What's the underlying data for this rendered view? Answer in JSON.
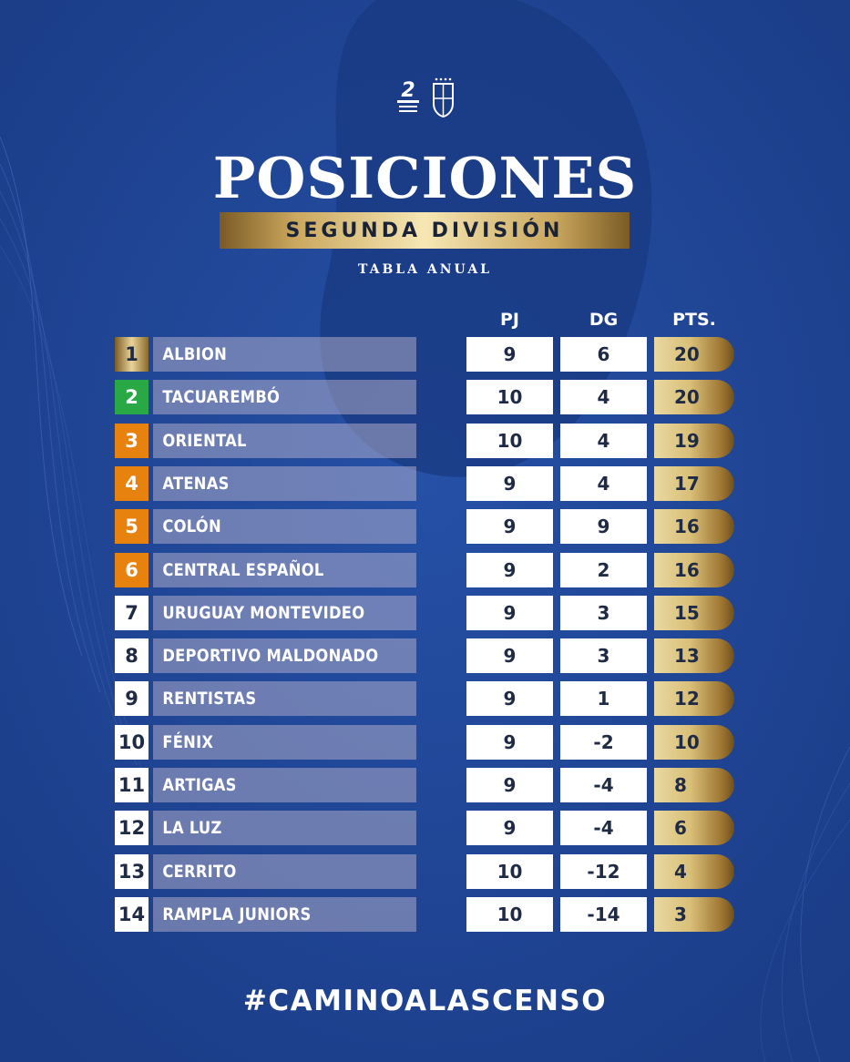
{
  "header": {
    "title": "POSICIONES",
    "subtitle": "SEGUNDA DIVISIÓN",
    "tabla": "TABLA ANUAL",
    "logo_text": "2"
  },
  "columns": {
    "pj": "PJ",
    "dg": "DG",
    "pts": "PTS."
  },
  "colors": {
    "background": "#1e4291",
    "gold": "#d9bf78",
    "green": "#2aa845",
    "orange": "#e8820f",
    "white": "#ffffff",
    "navy_text": "#1f2a44"
  },
  "rows": [
    {
      "pos": "1",
      "team": "ALBION",
      "pj": "9",
      "dg": "6",
      "pts": "20",
      "badge": "gold"
    },
    {
      "pos": "2",
      "team": "TACUAREMBÓ",
      "pj": "10",
      "dg": "4",
      "pts": "20",
      "badge": "green"
    },
    {
      "pos": "3",
      "team": "ORIENTAL",
      "pj": "10",
      "dg": "4",
      "pts": "19",
      "badge": "orange"
    },
    {
      "pos": "4",
      "team": "ATENAS",
      "pj": "9",
      "dg": "4",
      "pts": "17",
      "badge": "orange"
    },
    {
      "pos": "5",
      "team": "COLÓN",
      "pj": "9",
      "dg": "9",
      "pts": "16",
      "badge": "orange"
    },
    {
      "pos": "6",
      "team": "CENTRAL ESPAÑOL",
      "pj": "9",
      "dg": "2",
      "pts": "16",
      "badge": "orange"
    },
    {
      "pos": "7",
      "team": "URUGUAY MONTEVIDEO",
      "pj": "9",
      "dg": "3",
      "pts": "15",
      "badge": "white"
    },
    {
      "pos": "8",
      "team": "DEPORTIVO MALDONADO",
      "pj": "9",
      "dg": "3",
      "pts": "13",
      "badge": "white"
    },
    {
      "pos": "9",
      "team": "RENTISTAS",
      "pj": "9",
      "dg": "1",
      "pts": "12",
      "badge": "white"
    },
    {
      "pos": "10",
      "team": "FÉNIX",
      "pj": "9",
      "dg": "-2",
      "pts": "10",
      "badge": "white"
    },
    {
      "pos": "11",
      "team": "ARTIGAS",
      "pj": "9",
      "dg": "-4",
      "pts": "8",
      "badge": "white"
    },
    {
      "pos": "12",
      "team": "LA LUZ",
      "pj": "9",
      "dg": "-4",
      "pts": "6",
      "badge": "white"
    },
    {
      "pos": "13",
      "team": "CERRITO",
      "pj": "10",
      "dg": "-12",
      "pts": "4",
      "badge": "white"
    },
    {
      "pos": "14",
      "team": "RAMPLA JUNIORS",
      "pj": "10",
      "dg": "-14",
      "pts": "3",
      "badge": "white"
    }
  ],
  "footer": {
    "hashtag": "#CAMINOALASCENSO"
  }
}
